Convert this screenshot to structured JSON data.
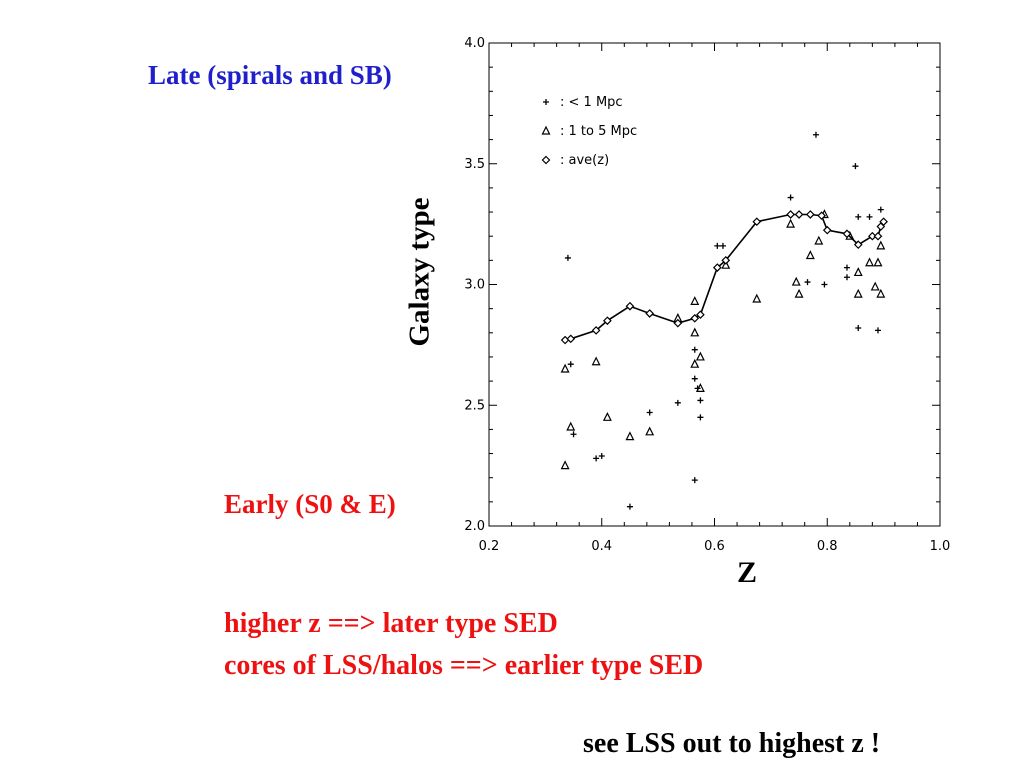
{
  "slide": {
    "late_label": "Late (spirals and SB)",
    "early_label": "Early (S0 & E)",
    "note_1": "higher z ==> later type SED",
    "note_2": "cores of LSS/halos ==> earlier type SED",
    "note_3": "see LSS out to highest z  !",
    "colors": {
      "blue_label": "#1f1fcc",
      "red_text": "#ee1111",
      "black_text": "#000000"
    }
  },
  "chart_data": {
    "type": "scatter",
    "xlabel": "Z",
    "ylabel": "Galaxy type",
    "xlim": [
      0.2,
      1.0
    ],
    "ylim": [
      2.0,
      4.0
    ],
    "x_ticks": [
      "0.2",
      "0.4",
      "0.6",
      "0.8",
      "1.0"
    ],
    "y_ticks": [
      "2.0",
      "2.5",
      "3.0",
      "3.5",
      "4.0"
    ],
    "legend_position": "top-left",
    "series": [
      {
        "name": ":  < 1  Mpc",
        "marker": "plus",
        "points": [
          [
            0.34,
            3.11
          ],
          [
            0.345,
            2.67
          ],
          [
            0.35,
            2.38
          ],
          [
            0.39,
            2.28
          ],
          [
            0.4,
            2.29
          ],
          [
            0.45,
            2.08
          ],
          [
            0.485,
            2.47
          ],
          [
            0.535,
            2.51
          ],
          [
            0.565,
            2.19
          ],
          [
            0.565,
            2.73
          ],
          [
            0.565,
            2.61
          ],
          [
            0.57,
            2.57
          ],
          [
            0.575,
            2.52
          ],
          [
            0.575,
            2.45
          ],
          [
            0.605,
            3.16
          ],
          [
            0.615,
            3.16
          ],
          [
            0.735,
            3.36
          ],
          [
            0.765,
            3.01
          ],
          [
            0.78,
            3.62
          ],
          [
            0.795,
            3.0
          ],
          [
            0.835,
            3.07
          ],
          [
            0.835,
            3.03
          ],
          [
            0.85,
            3.49
          ],
          [
            0.855,
            3.28
          ],
          [
            0.855,
            2.82
          ],
          [
            0.875,
            3.28
          ],
          [
            0.89,
            2.81
          ],
          [
            0.895,
            3.31
          ]
        ]
      },
      {
        "name": ":  1  to  5  Mpc",
        "marker": "triangle",
        "points": [
          [
            0.335,
            2.65
          ],
          [
            0.335,
            2.25
          ],
          [
            0.345,
            2.41
          ],
          [
            0.39,
            2.68
          ],
          [
            0.41,
            2.45
          ],
          [
            0.45,
            2.37
          ],
          [
            0.485,
            2.39
          ],
          [
            0.535,
            2.86
          ],
          [
            0.565,
            2.93
          ],
          [
            0.565,
            2.8
          ],
          [
            0.565,
            2.67
          ],
          [
            0.575,
            2.7
          ],
          [
            0.575,
            2.57
          ],
          [
            0.62,
            3.08
          ],
          [
            0.675,
            2.94
          ],
          [
            0.735,
            3.25
          ],
          [
            0.745,
            3.01
          ],
          [
            0.75,
            2.96
          ],
          [
            0.77,
            3.12
          ],
          [
            0.785,
            3.18
          ],
          [
            0.795,
            3.29
          ],
          [
            0.84,
            3.2
          ],
          [
            0.855,
            3.05
          ],
          [
            0.855,
            2.96
          ],
          [
            0.875,
            3.09
          ],
          [
            0.885,
            2.99
          ],
          [
            0.89,
            3.09
          ],
          [
            0.895,
            3.16
          ],
          [
            0.895,
            2.96
          ]
        ]
      },
      {
        "name": ":  ave(z)",
        "marker": "diamond",
        "connected": true,
        "points": [
          [
            0.335,
            2.77
          ],
          [
            0.345,
            2.775
          ],
          [
            0.39,
            2.81
          ],
          [
            0.41,
            2.85
          ],
          [
            0.45,
            2.91
          ],
          [
            0.485,
            2.88
          ],
          [
            0.535,
            2.84
          ],
          [
            0.565,
            2.86
          ],
          [
            0.575,
            2.875
          ],
          [
            0.605,
            3.07
          ],
          [
            0.62,
            3.1
          ],
          [
            0.675,
            3.26
          ],
          [
            0.735,
            3.29
          ],
          [
            0.75,
            3.29
          ],
          [
            0.77,
            3.29
          ],
          [
            0.79,
            3.285
          ],
          [
            0.8,
            3.225
          ],
          [
            0.835,
            3.21
          ],
          [
            0.855,
            3.165
          ],
          [
            0.88,
            3.2
          ],
          [
            0.89,
            3.2
          ],
          [
            0.895,
            3.24
          ],
          [
            0.9,
            3.26
          ]
        ]
      }
    ]
  }
}
